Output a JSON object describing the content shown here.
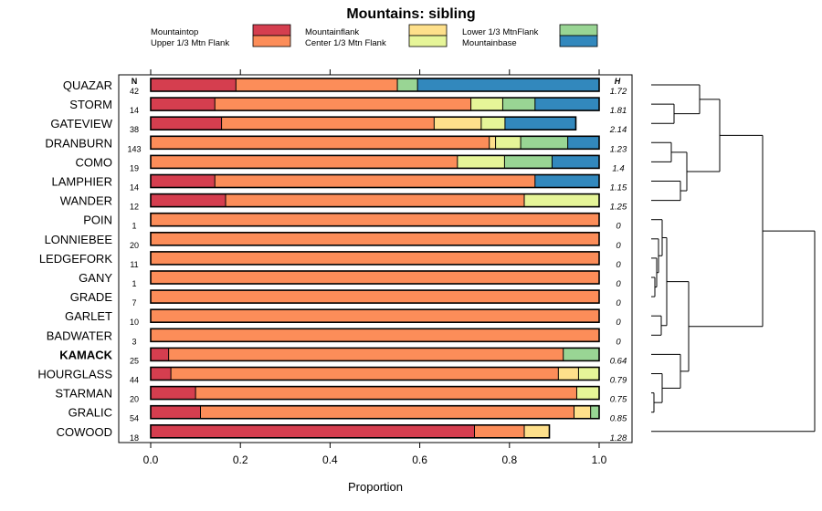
{
  "chart_data": {
    "type": "bar",
    "stacked": true,
    "orientation": "horizontal",
    "title": "Mountains: sibling",
    "xlabel": "Proportion",
    "ylabel": "",
    "xlim": [
      0,
      1
    ],
    "xticks": [
      "0.0",
      "0.2",
      "0.4",
      "0.6",
      "0.8",
      "1.0"
    ],
    "n_header": "N",
    "h_header": "H",
    "bold_category": "KAMACK",
    "legend_position": "top",
    "legend": [
      {
        "name": "Mountaintop",
        "color": "#d53e4f"
      },
      {
        "name": "Upper 1/3 Mtn Flank",
        "color": "#fc8d59"
      },
      {
        "name": "Mountainflank",
        "color": "#fee08b"
      },
      {
        "name": "Center 1/3 Mtn Flank",
        "color": "#e6f598"
      },
      {
        "name": "Lower 1/3 MtnFlank",
        "color": "#99d594"
      },
      {
        "name": "Mountainbase",
        "color": "#3288bd"
      }
    ],
    "rows": [
      {
        "name": "QUAZAR",
        "n": "42",
        "h": "1.72",
        "segments": [
          0.19,
          0.36,
          0,
          0,
          0.045,
          0.405
        ]
      },
      {
        "name": "STORM",
        "n": "14",
        "h": "1.81",
        "segments": [
          0.143,
          0.571,
          0,
          0.071,
          0.072,
          0.143
        ]
      },
      {
        "name": "GATEVIEW",
        "n": "38",
        "h": "2.14",
        "segments": [
          0.158,
          0.474,
          0.105,
          0.053,
          0,
          0.158
        ]
      },
      {
        "name": "DRANBURN",
        "n": "143",
        "h": "1.23",
        "segments": [
          0,
          0.755,
          0.014,
          0.056,
          0.105,
          0.07
        ]
      },
      {
        "name": "COMO",
        "n": "19",
        "h": "1.4",
        "segments": [
          0,
          0.684,
          0,
          0.105,
          0.106,
          0.105
        ]
      },
      {
        "name": "LAMPHIER",
        "n": "14",
        "h": "1.15",
        "segments": [
          0.143,
          0.714,
          0,
          0,
          0,
          0.143
        ]
      },
      {
        "name": "WANDER",
        "n": "12",
        "h": "1.25",
        "segments": [
          0.167,
          0.666,
          0,
          0.167,
          0,
          0
        ]
      },
      {
        "name": "POIN",
        "n": "1",
        "h": "0",
        "segments": [
          0,
          1,
          0,
          0,
          0,
          0
        ]
      },
      {
        "name": "LONNIEBEE",
        "n": "20",
        "h": "0",
        "segments": [
          0,
          1,
          0,
          0,
          0,
          0
        ]
      },
      {
        "name": "LEDGEFORK",
        "n": "11",
        "h": "0",
        "segments": [
          0,
          1,
          0,
          0,
          0,
          0
        ]
      },
      {
        "name": "GANY",
        "n": "1",
        "h": "0",
        "segments": [
          0,
          1,
          0,
          0,
          0,
          0
        ]
      },
      {
        "name": "GRADE",
        "n": "7",
        "h": "0",
        "segments": [
          0,
          1,
          0,
          0,
          0,
          0
        ]
      },
      {
        "name": "GARLET",
        "n": "10",
        "h": "0",
        "segments": [
          0,
          1,
          0,
          0,
          0,
          0
        ]
      },
      {
        "name": "BADWATER",
        "n": "3",
        "h": "0",
        "segments": [
          0,
          1,
          0,
          0,
          0,
          0
        ]
      },
      {
        "name": "KAMACK",
        "n": "25",
        "h": "0.64",
        "segments": [
          0.04,
          0.88,
          0,
          0,
          0.08,
          0
        ]
      },
      {
        "name": "HOURGLASS",
        "n": "44",
        "h": "0.79",
        "segments": [
          0.045,
          0.864,
          0.045,
          0.046,
          0,
          0
        ]
      },
      {
        "name": "STARMAN",
        "n": "20",
        "h": "0.75",
        "segments": [
          0.1,
          0.85,
          0,
          0.05,
          0,
          0
        ]
      },
      {
        "name": "GRALIC",
        "n": "54",
        "h": "0.85",
        "segments": [
          0.111,
          0.833,
          0.037,
          0,
          0.019,
          0
        ]
      },
      {
        "name": "COWOOD",
        "n": "18",
        "h": "1.28",
        "segments": [
          0.722,
          0.111,
          0.056,
          0,
          0,
          0
        ]
      }
    ],
    "dendrogram_order": [
      "QUAZAR",
      "STORM",
      "GATEVIEW",
      "DRANBURN",
      "COMO",
      "LAMPHIER",
      "WANDER",
      "POIN",
      "LONNIEBEE",
      "LEDGEFORK",
      "GANY",
      "GRADE",
      "GARLET",
      "BADWATER",
      "KAMACK",
      "HOURGLASS",
      "STARMAN",
      "GRALIC",
      "COWOOD"
    ]
  }
}
